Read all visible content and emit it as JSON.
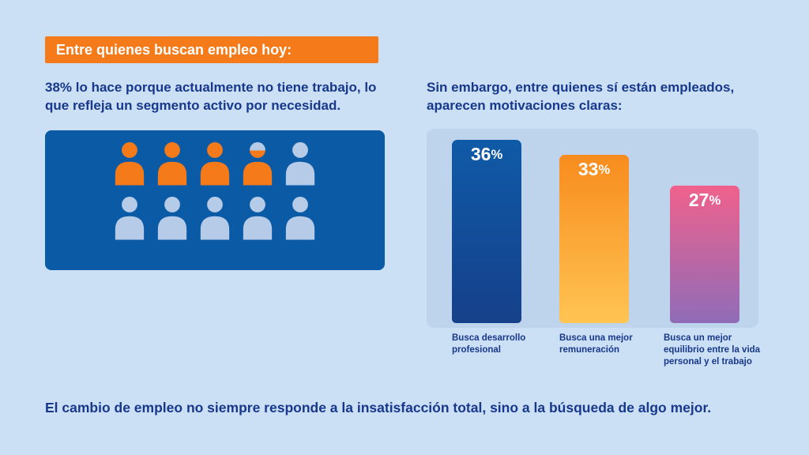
{
  "banner": {
    "text": "Entre quienes buscan empleo hoy:",
    "bg_color": "#f57a1a",
    "text_color": "#ffffff"
  },
  "left": {
    "stat": "38%",
    "text": " lo hace porque actualmente no tiene trabajo, lo que refleja un segmento activo por necesidad."
  },
  "right": {
    "heading": "Sin embargo, entre quienes sí están empleados, aparecen motivaciones claras:"
  },
  "footer": {
    "text": "El cambio de empleo no siempre responde a la insatisfacción total, sino a la búsqueda de algo mejor."
  },
  "pictogram": {
    "total_icons": 10,
    "highlighted_value": "38%",
    "fill_color": "#f57a1a",
    "empty_color": "#b6cbe7",
    "panel_color": "#0b5aa5",
    "icons": [
      1,
      1,
      1,
      0.8,
      0,
      0,
      0,
      0,
      0,
      0
    ]
  },
  "chart_data": {
    "type": "bar",
    "title": "",
    "categories": [
      "Busca desarrollo profesional",
      "Busca una mejor remuneración",
      "Busca un mejor equilibrio entre la vida personal y el trabajo"
    ],
    "values": [
      36,
      33,
      27
    ],
    "unit": "%",
    "ylim": [
      0,
      40
    ],
    "grid": false,
    "legend": "none",
    "panel_color": "#bed3ec",
    "bars": [
      {
        "value": 36,
        "value_text": "36",
        "unit": "%",
        "caption": "Busca desarrollo profesional",
        "color_top": "#0f5aa7",
        "color_bottom": "#16408a"
      },
      {
        "value": 33,
        "value_text": "33",
        "unit": "%",
        "caption": "Busca una mejor remuneración",
        "color_top": "#f78c1e",
        "color_bottom": "#ffc452"
      },
      {
        "value": 27,
        "value_text": "27",
        "unit": "%",
        "caption": "Busca un mejor equilibrio entre la vida personal y el trabajo",
        "color_top": "#f0618c",
        "color_bottom": "#8f6cb8"
      }
    ]
  }
}
